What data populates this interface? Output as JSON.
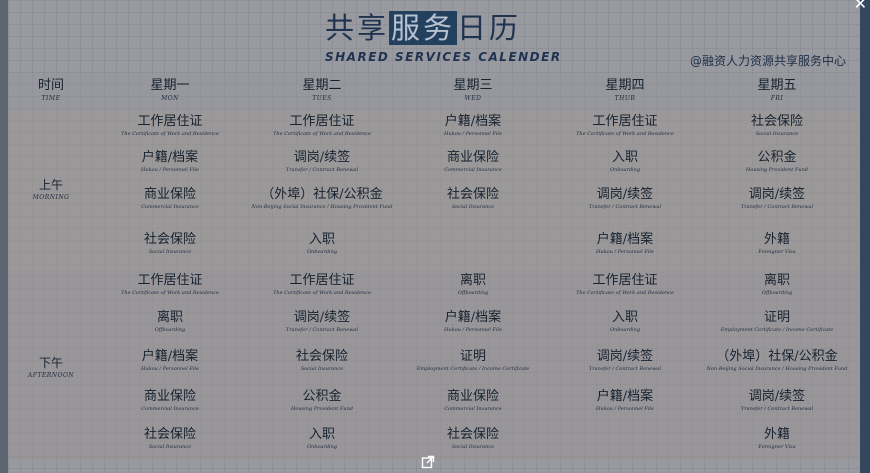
{
  "title": {
    "pre": "共享",
    "highlight": "服务",
    "post": "日历"
  },
  "subtitle": "SHARED SERVICES CALENDER",
  "org": "@融资人力资源共享服务中心",
  "headers": [
    {
      "zh": "时间",
      "en": "TIME"
    },
    {
      "zh": "星期一",
      "en": "MON"
    },
    {
      "zh": "星期二",
      "en": "TUES"
    },
    {
      "zh": "星期三",
      "en": "WED"
    },
    {
      "zh": "星期四",
      "en": "THUR"
    },
    {
      "zh": "星期五",
      "en": "FRI"
    }
  ],
  "am": {
    "zh": "上午",
    "en": "MORNING"
  },
  "pm": {
    "zh": "下午",
    "en": "AFTERNOON"
  },
  "am_rows": [
    [
      {
        "zh": "工作居住证",
        "en": "The Certificate of Work and Residence"
      },
      {
        "zh": "工作居住证",
        "en": "The Certificate of Work and Residence"
      },
      {
        "zh": "户籍/档案",
        "en": "Hukou / Personnel File"
      },
      {
        "zh": "工作居住证",
        "en": "The Certificate of Work and Residence"
      },
      {
        "zh": "社会保险",
        "en": "Social Insurance"
      }
    ],
    [
      {
        "zh": "户籍/档案",
        "en": "Hukou / Personnel File"
      },
      {
        "zh": "调岗/续签",
        "en": "Transfer / Contract Renewal"
      },
      {
        "zh": "商业保险",
        "en": "Commercial Insurance"
      },
      {
        "zh": "入职",
        "en": "Onboarding"
      },
      {
        "zh": "公积金",
        "en": "Housing Provident Fund"
      }
    ],
    [
      {
        "zh": "商业保险",
        "en": "Commercial Insurance"
      },
      {
        "zh": "（外埠）社保/公积金",
        "en": "Non-Beijing Social Insurance / Housing Provident Fund"
      },
      {
        "zh": "社会保险",
        "en": "Social Insurance"
      },
      {
        "zh": "调岗/续签",
        "en": "Transfer / Contract Renewal"
      },
      {
        "zh": "调岗/续签",
        "en": "Transfer / Contract Renewal"
      }
    ],
    [
      {
        "zh": "社会保险",
        "en": "Social Insurance"
      },
      {
        "zh": "入职",
        "en": "Onboarding"
      },
      {
        "zh": "",
        "en": ""
      },
      {
        "zh": "户籍/档案",
        "en": "Hukou / Personnel File"
      },
      {
        "zh": "外籍",
        "en": "Foreigner Visa"
      }
    ]
  ],
  "pm_rows": [
    [
      {
        "zh": "工作居住证",
        "en": "The Certificate of Work and Residence"
      },
      {
        "zh": "工作居住证",
        "en": "The Certificate of Work and Residence"
      },
      {
        "zh": "离职",
        "en": "Offboarding"
      },
      {
        "zh": "工作居住证",
        "en": "The Certificate of Work and Residence"
      },
      {
        "zh": "离职",
        "en": "Offboarding"
      }
    ],
    [
      {
        "zh": "离职",
        "en": "Offboarding"
      },
      {
        "zh": "调岗/续签",
        "en": "Transfer / Contract Renewal"
      },
      {
        "zh": "户籍/档案",
        "en": "Hukou / Personnel File"
      },
      {
        "zh": "入职",
        "en": "Onboarding"
      },
      {
        "zh": "证明",
        "en": "Employment Certificate / Income Certificate"
      }
    ],
    [
      {
        "zh": "户籍/档案",
        "en": "Hukou / Personnel File"
      },
      {
        "zh": "社会保险",
        "en": "Social Insurance"
      },
      {
        "zh": "证明",
        "en": "Employment Certificate / Income Certificate"
      },
      {
        "zh": "调岗/续签",
        "en": "Transfer / Contract Renewal"
      },
      {
        "zh": "（外埠）社保/公积金",
        "en": "Non-Beijing Social Insurance / Housing Provident Fund"
      }
    ],
    [
      {
        "zh": "商业保险",
        "en": "Commercial Insurance"
      },
      {
        "zh": "公积金",
        "en": "Housing Provident Fund"
      },
      {
        "zh": "商业保险",
        "en": "Commercial Insurance"
      },
      {
        "zh": "户籍/档案",
        "en": "Hukou / Personnel File"
      },
      {
        "zh": "调岗/续签",
        "en": "Transfer / Contract Renewal"
      }
    ],
    [
      {
        "zh": "社会保险",
        "en": "Social Insurance"
      },
      {
        "zh": "入职",
        "en": "Onboarding"
      },
      {
        "zh": "社会保险",
        "en": "Social Insurance"
      },
      {
        "zh": "",
        "en": ""
      },
      {
        "zh": "外籍",
        "en": "Foreigner Visa"
      }
    ]
  ]
}
